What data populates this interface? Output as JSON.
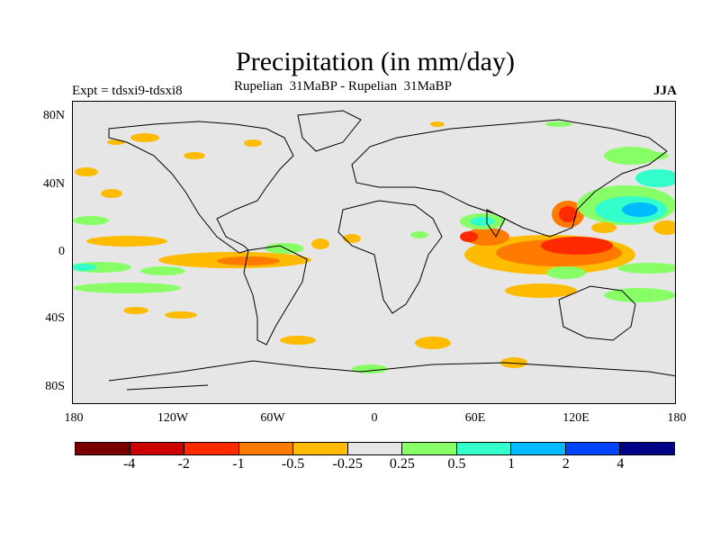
{
  "title": "Precipitation (in mm/day)",
  "subtitle": "Rupelian  31MaBP - Rupelian  31MaBP",
  "experiment": "Expt = tdsxi9-tdsxi8",
  "season": "JJA",
  "latitude_labels": [
    "80N",
    "40N",
    "0",
    "40S",
    "80S"
  ],
  "longitude_labels": [
    "180",
    "120W",
    "60W",
    "0",
    "60E",
    "120E",
    "180"
  ],
  "colorbar": {
    "colors": [
      "#7a0000",
      "#cc0000",
      "#ff2a00",
      "#ff7a00",
      "#ffbb00",
      "#e6e6e6",
      "#88ff66",
      "#33ffcc",
      "#00bbff",
      "#0044ff",
      "#000088"
    ],
    "labels": [
      "-4",
      "-2",
      "-1",
      "-0.5",
      "-0.25",
      "0.25",
      "0.5",
      "1",
      "2",
      "4"
    ]
  }
}
